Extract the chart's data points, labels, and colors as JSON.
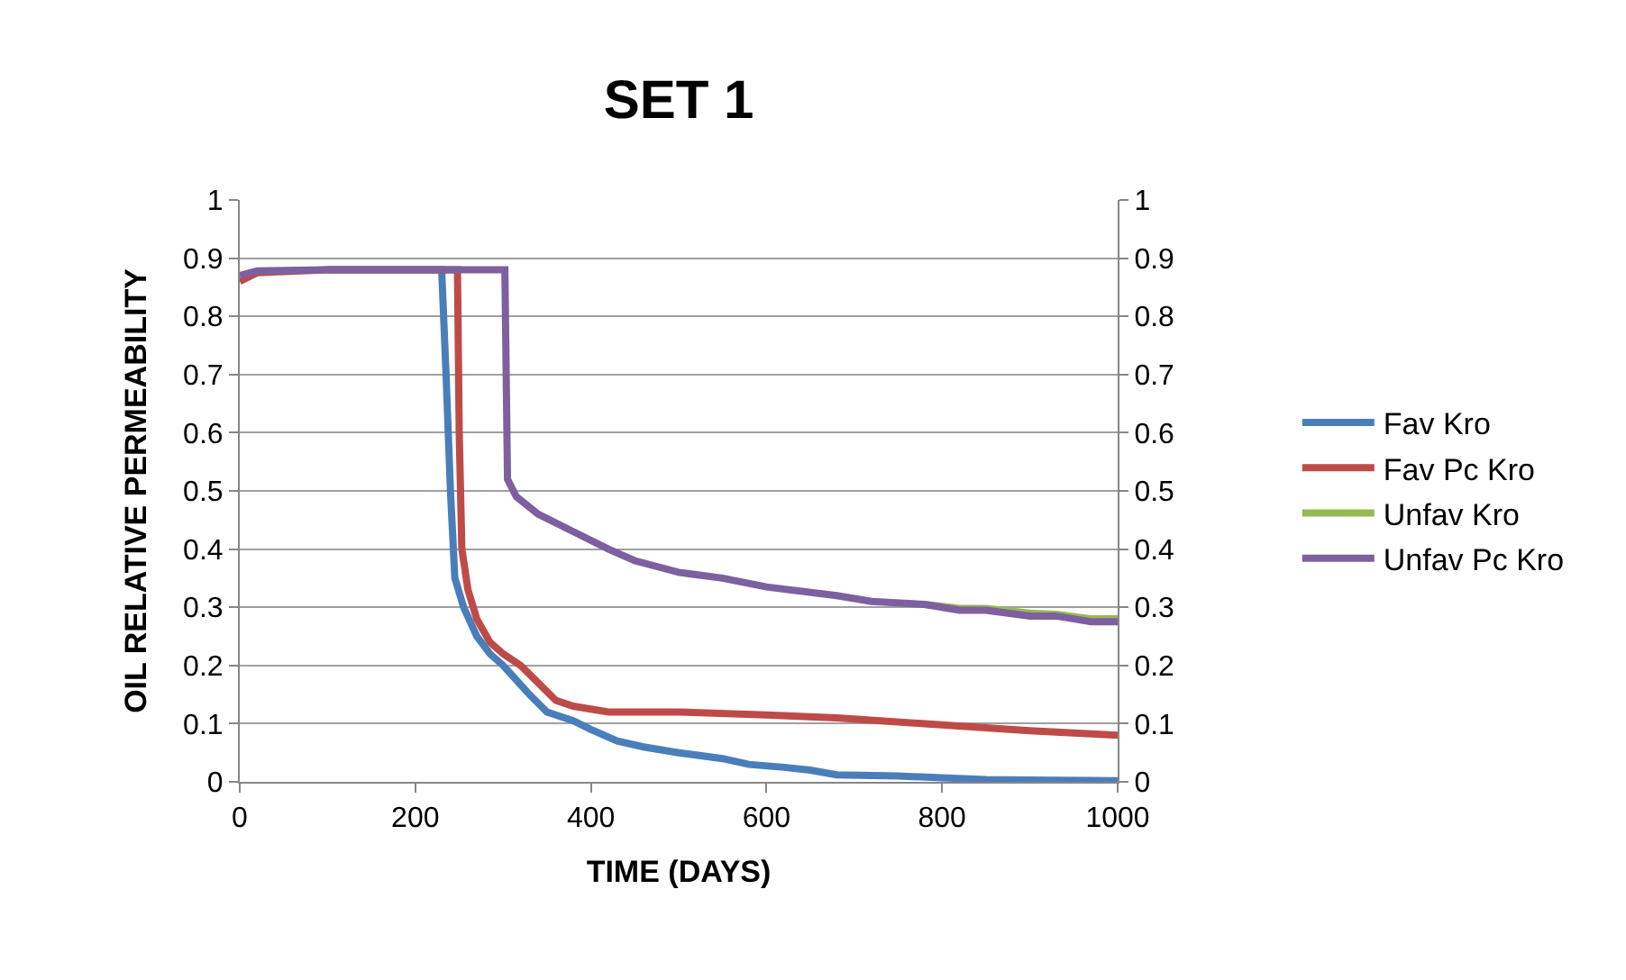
{
  "chart_data": {
    "type": "line",
    "title": "SET 1",
    "xlabel": "TIME (DAYS)",
    "ylabel": "OIL RELATIVE PERMEABILITY",
    "xlim": [
      0,
      1000
    ],
    "xticks": [
      0,
      200,
      400,
      600,
      800,
      1000
    ],
    "ylim": [
      0,
      1
    ],
    "yticks": [
      0,
      {
        "value": 0.1,
        "label": "0.1"
      },
      {
        "value": 0.2,
        "label": "0.2"
      },
      {
        "value": 0.3,
        "label": "0.3"
      },
      {
        "value": 0.4,
        "label": "0.4"
      },
      {
        "value": 0.5,
        "label": "0.5"
      },
      {
        "value": 0.6,
        "label": "0.6"
      },
      {
        "value": 0.7,
        "label": "0.7"
      },
      {
        "value": 0.8,
        "label": "0.8"
      },
      {
        "value": 0.9,
        "label": "0.9"
      },
      1
    ],
    "y2lim": [
      0,
      1
    ],
    "y2ticks": [
      0,
      {
        "value": 0.1,
        "label": "0.1"
      },
      {
        "value": 0.2,
        "label": "0.2"
      },
      {
        "value": 0.3,
        "label": "0.3"
      },
      {
        "value": 0.4,
        "label": "0.4"
      },
      {
        "value": 0.5,
        "label": "0.5"
      },
      {
        "value": 0.6,
        "label": "0.6"
      },
      {
        "value": 0.7,
        "label": "0.7"
      },
      {
        "value": 0.8,
        "label": "0.8"
      },
      {
        "value": 0.9,
        "label": "0.9"
      },
      1
    ],
    "grid": "y",
    "legend": "right",
    "marker": "none",
    "line_style": "solid",
    "series": [
      {
        "name": "Fav Kro",
        "color": "#4a7ebb",
        "x": [
          100,
          230,
          235,
          240,
          245,
          255,
          270,
          285,
          300,
          330,
          350,
          380,
          400,
          430,
          460,
          500,
          550,
          580,
          620,
          650,
          680,
          750,
          800,
          850,
          900,
          1000
        ],
        "values": [
          0.88,
          0.88,
          0.7,
          0.5,
          0.35,
          0.3,
          0.25,
          0.22,
          0.2,
          0.15,
          0.12,
          0.105,
          0.09,
          0.07,
          0.06,
          0.05,
          0.04,
          0.03,
          0.025,
          0.02,
          0.012,
          0.01,
          0.007,
          0.004,
          0.003,
          0.002
        ]
      },
      {
        "name": "Fav Pc Kro",
        "color": "#be4b48",
        "x": [
          0,
          20,
          100,
          248,
          250,
          253,
          260,
          270,
          285,
          300,
          320,
          340,
          360,
          380,
          420,
          500,
          600,
          680,
          780,
          850,
          900,
          1000
        ],
        "values": [
          0.86,
          0.875,
          0.88,
          0.88,
          0.6,
          0.4,
          0.33,
          0.28,
          0.24,
          0.22,
          0.2,
          0.17,
          0.14,
          0.13,
          0.12,
          0.12,
          0.115,
          0.11,
          0.1,
          0.093,
          0.088,
          0.08
        ]
      },
      {
        "name": "Unfav Kro",
        "color": "#98b954",
        "x": [
          780,
          820,
          850,
          900,
          930,
          970,
          1000
        ],
        "values": [
          0.305,
          0.298,
          0.298,
          0.29,
          0.288,
          0.28,
          0.28
        ]
      },
      {
        "name": "Unfav Pc Kro",
        "color": "#7d60a0",
        "x": [
          0,
          20,
          100,
          302,
          305,
          315,
          340,
          380,
          420,
          450,
          500,
          550,
          600,
          680,
          720,
          780,
          820,
          850,
          900,
          930,
          970,
          1000
        ],
        "values": [
          0.87,
          0.878,
          0.88,
          0.88,
          0.52,
          0.49,
          0.46,
          0.43,
          0.4,
          0.38,
          0.36,
          0.35,
          0.335,
          0.32,
          0.31,
          0.305,
          0.295,
          0.295,
          0.285,
          0.285,
          0.275,
          0.275
        ]
      }
    ]
  }
}
